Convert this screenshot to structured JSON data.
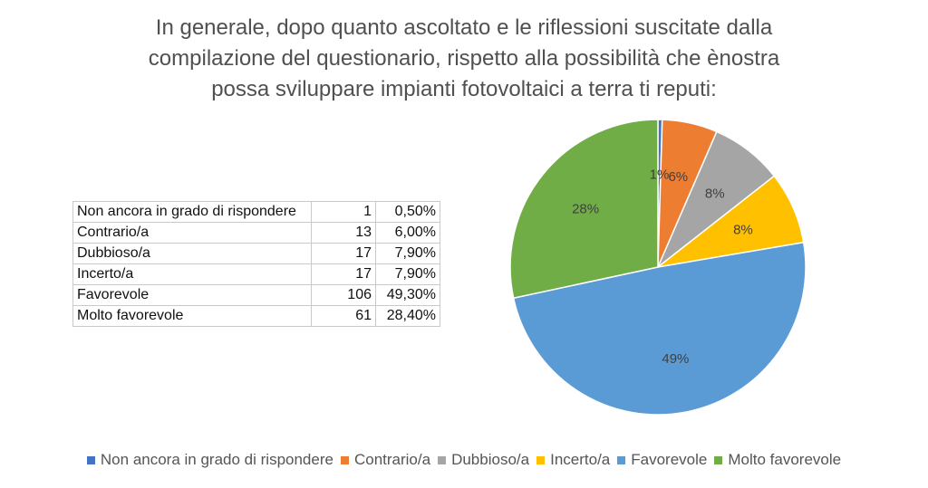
{
  "chart_data": {
    "type": "pie",
    "title_lines": [
      "In generale, dopo quanto ascoltato e le riflessioni suscitate dalla",
      "compilazione del questionario, rispetto alla possibilità che ènostra",
      "possa sviluppare impianti fotovoltaici a terra ti reputi:"
    ],
    "categories": [
      "Non ancora in grado di rispondere",
      "Contrario/a",
      "Dubbioso/a",
      "Incerto/a",
      "Favorevole",
      "Molto favorevole"
    ],
    "values": [
      1,
      13,
      17,
      17,
      106,
      61
    ],
    "percent_text": [
      "0,50%",
      "6,00%",
      "7,90%",
      "7,90%",
      "49,30%",
      "28,40%"
    ],
    "data_labels": [
      "1%",
      "6%",
      "8%",
      "8%",
      "49%",
      "28%"
    ],
    "colors": [
      "#4472C4",
      "#ED7D31",
      "#A5A5A5",
      "#FFC000",
      "#5B9BD5",
      "#70AD47"
    ],
    "legend_position": "bottom"
  },
  "table": {
    "rows": [
      {
        "label": "Non ancora in grado di rispondere",
        "count": "1",
        "percent": "0,50%"
      },
      {
        "label": "Contrario/a",
        "count": "13",
        "percent": "6,00%"
      },
      {
        "label": "Dubbioso/a",
        "count": "17",
        "percent": "7,90%"
      },
      {
        "label": "Incerto/a",
        "count": "17",
        "percent": "7,90%"
      },
      {
        "label": "Favorevole",
        "count": "106",
        "percent": "49,30%"
      },
      {
        "label": "Molto favorevole",
        "count": "61",
        "percent": "28,40%"
      }
    ]
  }
}
